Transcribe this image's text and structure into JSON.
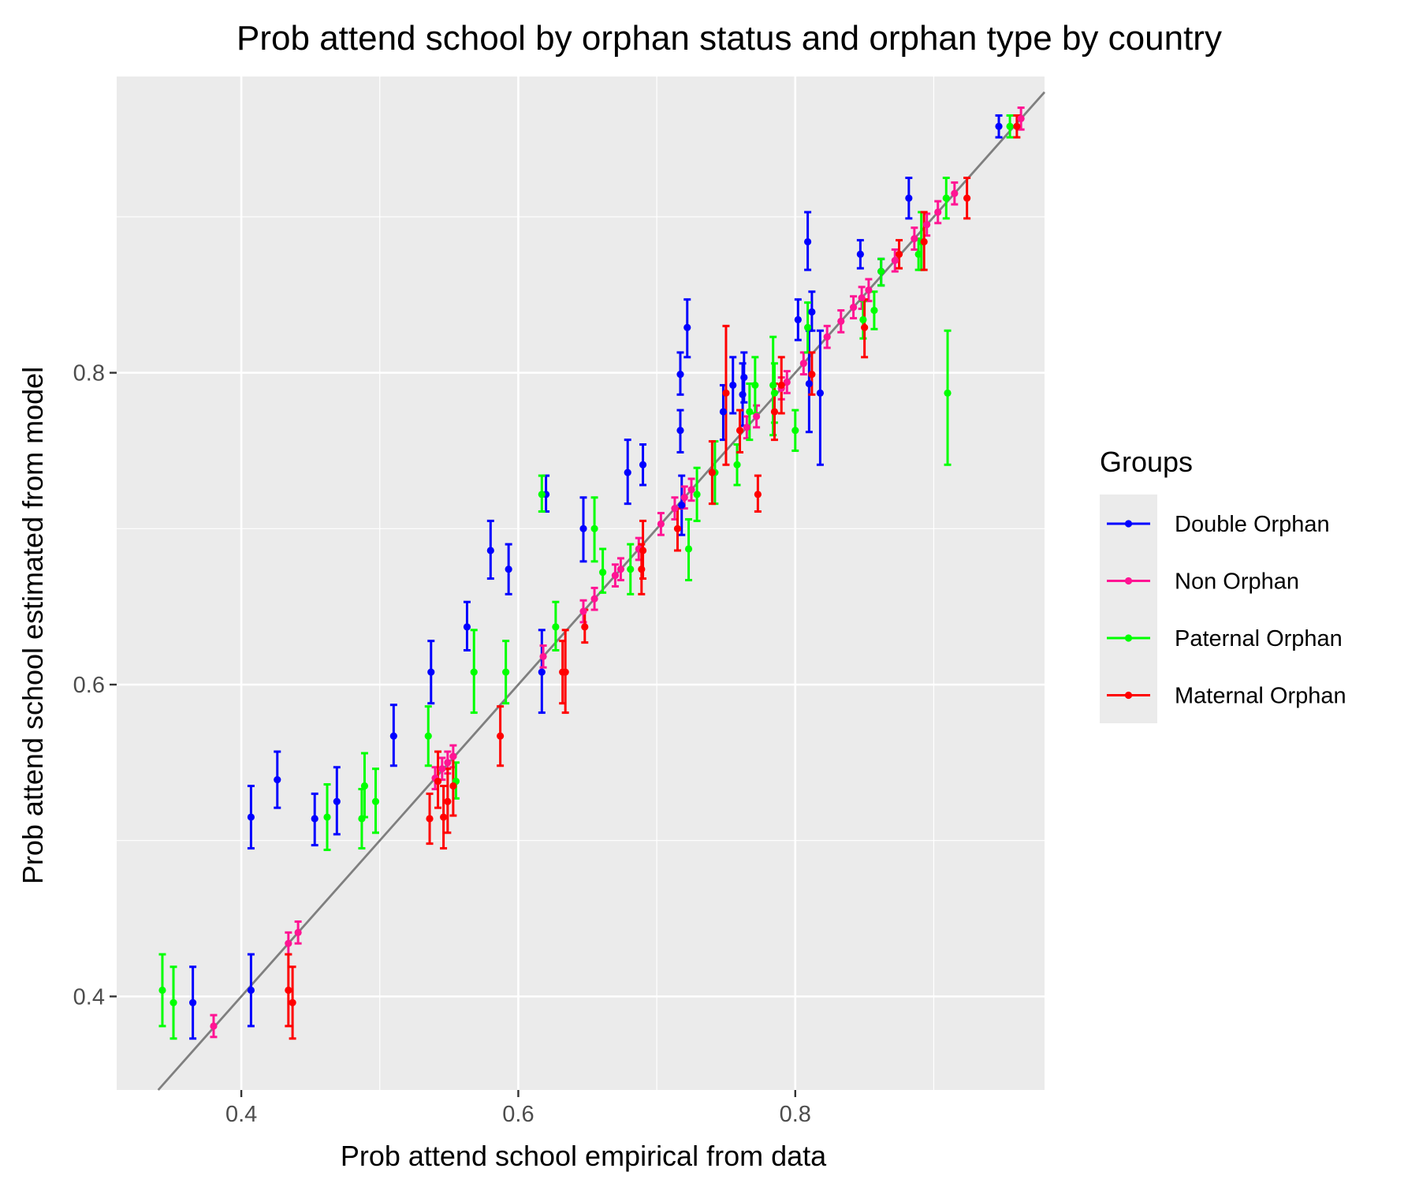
{
  "chart_data": {
    "type": "scatter",
    "title": "Prob attend school by orphan status and orphan type by country",
    "xlabel": "Prob attend school empirical from data",
    "ylabel": "Prob attend school estimated from model",
    "xlim": [
      0.31,
      0.98
    ],
    "ylim": [
      0.34,
      0.99
    ],
    "x_ticks": [
      0.4,
      0.6,
      0.8
    ],
    "x_tick_labels": [
      "0.4",
      "0.6",
      "0.8"
    ],
    "y_ticks": [
      0.4,
      0.6,
      0.8
    ],
    "y_tick_labels": [
      "0.4",
      "0.6",
      "0.8"
    ],
    "grid": true,
    "background": "#ebebeb",
    "reference_line": {
      "slope": 1,
      "intercept": 0,
      "color": "#7f7f7f"
    },
    "legend": {
      "title": "Groups",
      "position": "right"
    },
    "series": [
      {
        "name": "Double Orphan",
        "color": "#0000ff",
        "points": [
          {
            "x": 0.365,
            "y": 0.396,
            "lo": 0.373,
            "hi": 0.419
          },
          {
            "x": 0.407,
            "y": 0.404,
            "lo": 0.381,
            "hi": 0.427
          },
          {
            "x": 0.407,
            "y": 0.515,
            "lo": 0.495,
            "hi": 0.535
          },
          {
            "x": 0.426,
            "y": 0.539,
            "lo": 0.521,
            "hi": 0.557
          },
          {
            "x": 0.453,
            "y": 0.514,
            "lo": 0.497,
            "hi": 0.53
          },
          {
            "x": 0.469,
            "y": 0.525,
            "lo": 0.504,
            "hi": 0.547
          },
          {
            "x": 0.51,
            "y": 0.567,
            "lo": 0.548,
            "hi": 0.587
          },
          {
            "x": 0.537,
            "y": 0.608,
            "lo": 0.588,
            "hi": 0.628
          },
          {
            "x": 0.563,
            "y": 0.637,
            "lo": 0.622,
            "hi": 0.653
          },
          {
            "x": 0.58,
            "y": 0.686,
            "lo": 0.668,
            "hi": 0.705
          },
          {
            "x": 0.593,
            "y": 0.674,
            "lo": 0.658,
            "hi": 0.69
          },
          {
            "x": 0.617,
            "y": 0.608,
            "lo": 0.582,
            "hi": 0.635
          },
          {
            "x": 0.62,
            "y": 0.722,
            "lo": 0.711,
            "hi": 0.734
          },
          {
            "x": 0.647,
            "y": 0.7,
            "lo": 0.679,
            "hi": 0.72
          },
          {
            "x": 0.679,
            "y": 0.736,
            "lo": 0.716,
            "hi": 0.757
          },
          {
            "x": 0.69,
            "y": 0.741,
            "lo": 0.728,
            "hi": 0.754
          },
          {
            "x": 0.717,
            "y": 0.799,
            "lo": 0.786,
            "hi": 0.813
          },
          {
            "x": 0.717,
            "y": 0.763,
            "lo": 0.749,
            "hi": 0.776
          },
          {
            "x": 0.718,
            "y": 0.715,
            "lo": 0.696,
            "hi": 0.734
          },
          {
            "x": 0.722,
            "y": 0.829,
            "lo": 0.81,
            "hi": 0.847
          },
          {
            "x": 0.748,
            "y": 0.775,
            "lo": 0.757,
            "hi": 0.792
          },
          {
            "x": 0.755,
            "y": 0.792,
            "lo": 0.774,
            "hi": 0.81
          },
          {
            "x": 0.762,
            "y": 0.786,
            "lo": 0.766,
            "hi": 0.806
          },
          {
            "x": 0.763,
            "y": 0.797,
            "lo": 0.781,
            "hi": 0.813
          },
          {
            "x": 0.802,
            "y": 0.834,
            "lo": 0.821,
            "hi": 0.847
          },
          {
            "x": 0.809,
            "y": 0.884,
            "lo": 0.866,
            "hi": 0.903
          },
          {
            "x": 0.81,
            "y": 0.793,
            "lo": 0.762,
            "hi": 0.827
          },
          {
            "x": 0.812,
            "y": 0.839,
            "lo": 0.827,
            "hi": 0.852
          },
          {
            "x": 0.818,
            "y": 0.787,
            "lo": 0.741,
            "hi": 0.827
          },
          {
            "x": 0.847,
            "y": 0.876,
            "lo": 0.867,
            "hi": 0.885
          },
          {
            "x": 0.862,
            "y": 0.865,
            "lo": 0.856,
            "hi": 0.873
          },
          {
            "x": 0.882,
            "y": 0.912,
            "lo": 0.899,
            "hi": 0.925
          },
          {
            "x": 0.947,
            "y": 0.958,
            "lo": 0.951,
            "hi": 0.965
          }
        ]
      },
      {
        "name": "Non Orphan",
        "color": "#ff1493",
        "points": [
          {
            "x": 0.38,
            "y": 0.381,
            "lo": 0.374,
            "hi": 0.388
          },
          {
            "x": 0.434,
            "y": 0.434,
            "lo": 0.427,
            "hi": 0.441
          },
          {
            "x": 0.441,
            "y": 0.441,
            "lo": 0.434,
            "hi": 0.448
          },
          {
            "x": 0.54,
            "y": 0.54,
            "lo": 0.533,
            "hi": 0.547
          },
          {
            "x": 0.545,
            "y": 0.546,
            "lo": 0.539,
            "hi": 0.553
          },
          {
            "x": 0.549,
            "y": 0.55,
            "lo": 0.543,
            "hi": 0.557
          },
          {
            "x": 0.553,
            "y": 0.554,
            "lo": 0.547,
            "hi": 0.561
          },
          {
            "x": 0.618,
            "y": 0.618,
            "lo": 0.611,
            "hi": 0.625
          },
          {
            "x": 0.647,
            "y": 0.647,
            "lo": 0.64,
            "hi": 0.654
          },
          {
            "x": 0.655,
            "y": 0.655,
            "lo": 0.648,
            "hi": 0.662
          },
          {
            "x": 0.67,
            "y": 0.67,
            "lo": 0.663,
            "hi": 0.677
          },
          {
            "x": 0.674,
            "y": 0.674,
            "lo": 0.667,
            "hi": 0.681
          },
          {
            "x": 0.687,
            "y": 0.687,
            "lo": 0.68,
            "hi": 0.694
          },
          {
            "x": 0.703,
            "y": 0.703,
            "lo": 0.696,
            "hi": 0.71
          },
          {
            "x": 0.713,
            "y": 0.713,
            "lo": 0.706,
            "hi": 0.72
          },
          {
            "x": 0.72,
            "y": 0.72,
            "lo": 0.713,
            "hi": 0.727
          },
          {
            "x": 0.725,
            "y": 0.725,
            "lo": 0.718,
            "hi": 0.732
          },
          {
            "x": 0.765,
            "y": 0.765,
            "lo": 0.758,
            "hi": 0.772
          },
          {
            "x": 0.772,
            "y": 0.772,
            "lo": 0.765,
            "hi": 0.779
          },
          {
            "x": 0.79,
            "y": 0.79,
            "lo": 0.783,
            "hi": 0.797
          },
          {
            "x": 0.794,
            "y": 0.794,
            "lo": 0.787,
            "hi": 0.801
          },
          {
            "x": 0.806,
            "y": 0.806,
            "lo": 0.799,
            "hi": 0.813
          },
          {
            "x": 0.823,
            "y": 0.823,
            "lo": 0.816,
            "hi": 0.83
          },
          {
            "x": 0.833,
            "y": 0.833,
            "lo": 0.826,
            "hi": 0.84
          },
          {
            "x": 0.842,
            "y": 0.842,
            "lo": 0.835,
            "hi": 0.849
          },
          {
            "x": 0.848,
            "y": 0.848,
            "lo": 0.841,
            "hi": 0.855
          },
          {
            "x": 0.853,
            "y": 0.853,
            "lo": 0.846,
            "hi": 0.86
          },
          {
            "x": 0.872,
            "y": 0.872,
            "lo": 0.865,
            "hi": 0.879
          },
          {
            "x": 0.886,
            "y": 0.886,
            "lo": 0.879,
            "hi": 0.893
          },
          {
            "x": 0.895,
            "y": 0.895,
            "lo": 0.888,
            "hi": 0.902
          },
          {
            "x": 0.903,
            "y": 0.903,
            "lo": 0.896,
            "hi": 0.91
          },
          {
            "x": 0.915,
            "y": 0.915,
            "lo": 0.908,
            "hi": 0.922
          },
          {
            "x": 0.963,
            "y": 0.963,
            "lo": 0.956,
            "hi": 0.97
          }
        ]
      },
      {
        "name": "Paternal Orphan",
        "color": "#00ff00",
        "points": [
          {
            "x": 0.343,
            "y": 0.404,
            "lo": 0.381,
            "hi": 0.427
          },
          {
            "x": 0.351,
            "y": 0.396,
            "lo": 0.373,
            "hi": 0.419
          },
          {
            "x": 0.462,
            "y": 0.515,
            "lo": 0.494,
            "hi": 0.536
          },
          {
            "x": 0.487,
            "y": 0.514,
            "lo": 0.495,
            "hi": 0.533
          },
          {
            "x": 0.489,
            "y": 0.535,
            "lo": 0.515,
            "hi": 0.556
          },
          {
            "x": 0.497,
            "y": 0.525,
            "lo": 0.505,
            "hi": 0.546
          },
          {
            "x": 0.535,
            "y": 0.567,
            "lo": 0.548,
            "hi": 0.586
          },
          {
            "x": 0.555,
            "y": 0.538,
            "lo": 0.527,
            "hi": 0.55
          },
          {
            "x": 0.568,
            "y": 0.608,
            "lo": 0.582,
            "hi": 0.635
          },
          {
            "x": 0.591,
            "y": 0.608,
            "lo": 0.588,
            "hi": 0.628
          },
          {
            "x": 0.617,
            "y": 0.722,
            "lo": 0.711,
            "hi": 0.734
          },
          {
            "x": 0.627,
            "y": 0.637,
            "lo": 0.622,
            "hi": 0.653
          },
          {
            "x": 0.655,
            "y": 0.7,
            "lo": 0.679,
            "hi": 0.72
          },
          {
            "x": 0.661,
            "y": 0.672,
            "lo": 0.659,
            "hi": 0.687
          },
          {
            "x": 0.681,
            "y": 0.674,
            "lo": 0.658,
            "hi": 0.69
          },
          {
            "x": 0.723,
            "y": 0.687,
            "lo": 0.667,
            "hi": 0.706
          },
          {
            "x": 0.729,
            "y": 0.722,
            "lo": 0.705,
            "hi": 0.739
          },
          {
            "x": 0.742,
            "y": 0.736,
            "lo": 0.716,
            "hi": 0.756
          },
          {
            "x": 0.758,
            "y": 0.741,
            "lo": 0.728,
            "hi": 0.754
          },
          {
            "x": 0.767,
            "y": 0.775,
            "lo": 0.757,
            "hi": 0.793
          },
          {
            "x": 0.771,
            "y": 0.792,
            "lo": 0.774,
            "hi": 0.81
          },
          {
            "x": 0.784,
            "y": 0.792,
            "lo": 0.76,
            "hi": 0.823
          },
          {
            "x": 0.785,
            "y": 0.787,
            "lo": 0.768,
            "hi": 0.806
          },
          {
            "x": 0.8,
            "y": 0.763,
            "lo": 0.75,
            "hi": 0.776
          },
          {
            "x": 0.809,
            "y": 0.829,
            "lo": 0.813,
            "hi": 0.845
          },
          {
            "x": 0.849,
            "y": 0.834,
            "lo": 0.822,
            "hi": 0.846
          },
          {
            "x": 0.857,
            "y": 0.84,
            "lo": 0.828,
            "hi": 0.852
          },
          {
            "x": 0.862,
            "y": 0.865,
            "lo": 0.856,
            "hi": 0.873
          },
          {
            "x": 0.889,
            "y": 0.876,
            "lo": 0.866,
            "hi": 0.886
          },
          {
            "x": 0.891,
            "y": 0.884,
            "lo": 0.866,
            "hi": 0.903
          },
          {
            "x": 0.909,
            "y": 0.912,
            "lo": 0.899,
            "hi": 0.925
          },
          {
            "x": 0.91,
            "y": 0.787,
            "lo": 0.741,
            "hi": 0.827
          },
          {
            "x": 0.955,
            "y": 0.958,
            "lo": 0.951,
            "hi": 0.965
          }
        ]
      },
      {
        "name": "Maternal Orphan",
        "color": "#ff0000",
        "points": [
          {
            "x": 0.434,
            "y": 0.404,
            "lo": 0.381,
            "hi": 0.427
          },
          {
            "x": 0.437,
            "y": 0.396,
            "lo": 0.373,
            "hi": 0.419
          },
          {
            "x": 0.536,
            "y": 0.514,
            "lo": 0.498,
            "hi": 0.53
          },
          {
            "x": 0.542,
            "y": 0.538,
            "lo": 0.521,
            "hi": 0.557
          },
          {
            "x": 0.546,
            "y": 0.515,
            "lo": 0.495,
            "hi": 0.535
          },
          {
            "x": 0.549,
            "y": 0.525,
            "lo": 0.505,
            "hi": 0.546
          },
          {
            "x": 0.553,
            "y": 0.535,
            "lo": 0.516,
            "hi": 0.554
          },
          {
            "x": 0.587,
            "y": 0.567,
            "lo": 0.548,
            "hi": 0.586
          },
          {
            "x": 0.632,
            "y": 0.608,
            "lo": 0.588,
            "hi": 0.628
          },
          {
            "x": 0.634,
            "y": 0.608,
            "lo": 0.582,
            "hi": 0.635
          },
          {
            "x": 0.648,
            "y": 0.637,
            "lo": 0.627,
            "hi": 0.648
          },
          {
            "x": 0.689,
            "y": 0.674,
            "lo": 0.658,
            "hi": 0.69
          },
          {
            "x": 0.69,
            "y": 0.686,
            "lo": 0.668,
            "hi": 0.705
          },
          {
            "x": 0.715,
            "y": 0.7,
            "lo": 0.686,
            "hi": 0.713
          },
          {
            "x": 0.74,
            "y": 0.736,
            "lo": 0.716,
            "hi": 0.756
          },
          {
            "x": 0.75,
            "y": 0.787,
            "lo": 0.741,
            "hi": 0.83
          },
          {
            "x": 0.76,
            "y": 0.763,
            "lo": 0.749,
            "hi": 0.776
          },
          {
            "x": 0.773,
            "y": 0.722,
            "lo": 0.711,
            "hi": 0.734
          },
          {
            "x": 0.785,
            "y": 0.775,
            "lo": 0.757,
            "hi": 0.793
          },
          {
            "x": 0.79,
            "y": 0.792,
            "lo": 0.774,
            "hi": 0.81
          },
          {
            "x": 0.812,
            "y": 0.799,
            "lo": 0.786,
            "hi": 0.813
          },
          {
            "x": 0.85,
            "y": 0.829,
            "lo": 0.81,
            "hi": 0.847
          },
          {
            "x": 0.875,
            "y": 0.876,
            "lo": 0.867,
            "hi": 0.885
          },
          {
            "x": 0.893,
            "y": 0.884,
            "lo": 0.866,
            "hi": 0.903
          },
          {
            "x": 0.924,
            "y": 0.912,
            "lo": 0.899,
            "hi": 0.925
          },
          {
            "x": 0.96,
            "y": 0.958,
            "lo": 0.951,
            "hi": 0.965
          }
        ]
      }
    ]
  }
}
